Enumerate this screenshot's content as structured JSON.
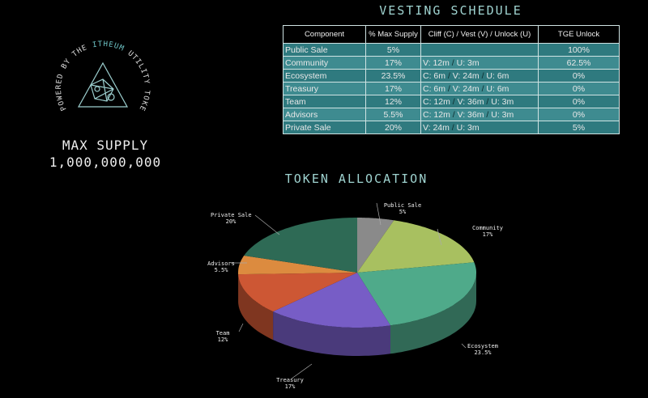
{
  "logo": {
    "text_prefix": "POWERED BY THE ",
    "brand": "ITHEUM",
    "text_suffix": " UTILITY TOKEN"
  },
  "max_supply": {
    "label": "MAX SUPPLY",
    "value": "1,000,000,000"
  },
  "vesting": {
    "title": "VESTING SCHEDULE",
    "headers": [
      "Component",
      "% Max Supply",
      "Cliff (C) / Vest (V) / Unlock (U)",
      "TGE Unlock"
    ],
    "rows": [
      {
        "component": "Public Sale",
        "pct": "5%",
        "schedule": [],
        "tge": "100%"
      },
      {
        "component": "Community",
        "pct": "17%",
        "schedule": [
          "V: 12m",
          "U: 3m"
        ],
        "tge": "62.5%"
      },
      {
        "component": "Ecosystem",
        "pct": "23.5%",
        "schedule": [
          "C:  6m",
          "V: 24m",
          "U: 6m"
        ],
        "tge": "0%"
      },
      {
        "component": "Treasury",
        "pct": "17%",
        "schedule": [
          "C:  6m",
          "V: 24m",
          "U: 6m"
        ],
        "tge": "0%"
      },
      {
        "component": "Team",
        "pct": "12%",
        "schedule": [
          "C: 12m",
          "V: 36m",
          "U: 3m"
        ],
        "tge": "0%"
      },
      {
        "component": "Advisors",
        "pct": "5.5%",
        "schedule": [
          "C: 12m",
          "V: 36m",
          "U: 3m"
        ],
        "tge": "0%"
      },
      {
        "component": "Private Sale",
        "pct": "20%",
        "schedule": [
          "V: 24m",
          "U: 3m"
        ],
        "tge": "5%"
      }
    ]
  },
  "chart_data": {
    "type": "pie",
    "style": "3d",
    "title": "TOKEN ALLOCATION",
    "slices": [
      {
        "label": "Public Sale",
        "value": 5,
        "value_label": "5%",
        "color": "#8a8a8a"
      },
      {
        "label": "Community",
        "value": 17,
        "value_label": "17%",
        "color": "#a8c060"
      },
      {
        "label": "Ecosystem",
        "value": 23.5,
        "value_label": "23.5%",
        "color": "#4faa8a"
      },
      {
        "label": "Treasury",
        "value": 17,
        "value_label": "17%",
        "color": "#775dc6"
      },
      {
        "label": "Team",
        "value": 12,
        "value_label": "12%",
        "color": "#cd5734"
      },
      {
        "label": "Advisors",
        "value": 5.5,
        "value_label": "5.5%",
        "color": "#dc8b3f"
      },
      {
        "label": "Private Sale",
        "value": 20,
        "value_label": "20%",
        "color": "#2e6a55"
      }
    ]
  }
}
